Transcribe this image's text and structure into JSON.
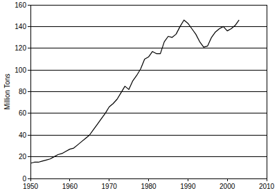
{
  "chart_data": {
    "type": "line",
    "y_label": "Million Tons",
    "x": [
      1950,
      1951,
      1952,
      1953,
      1954,
      1955,
      1956,
      1957,
      1958,
      1959,
      1960,
      1961,
      1962,
      1963,
      1964,
      1965,
      1966,
      1967,
      1968,
      1969,
      1970,
      1971,
      1972,
      1973,
      1974,
      1975,
      1976,
      1977,
      1978,
      1979,
      1980,
      1981,
      1982,
      1983,
      1984,
      1985,
      1986,
      1987,
      1988,
      1989,
      1990,
      1991,
      1992,
      1993,
      1994,
      1995,
      1996,
      1997,
      1998,
      1999,
      2000,
      2001,
      2002,
      2003
    ],
    "values": [
      14,
      15,
      15,
      16,
      17,
      18,
      20,
      22,
      23,
      25,
      27,
      28,
      31,
      34,
      37,
      40,
      45,
      50,
      55,
      60,
      66,
      69,
      73,
      79,
      85,
      82,
      90,
      95,
      101,
      110,
      112,
      117,
      115,
      115,
      126,
      131,
      130,
      133,
      140,
      146,
      143,
      138,
      133,
      126,
      121,
      122,
      130,
      135,
      138,
      140,
      136,
      138,
      141,
      146
    ],
    "color": "#000000",
    "xlim": [
      1950,
      2010
    ],
    "xticks": [
      1950,
      1960,
      1970,
      1980,
      1990,
      2000,
      2010
    ],
    "ylim": [
      0,
      160
    ],
    "yticks": [
      0,
      20,
      40,
      60,
      80,
      100,
      120,
      140,
      160
    ],
    "grid": true
  }
}
